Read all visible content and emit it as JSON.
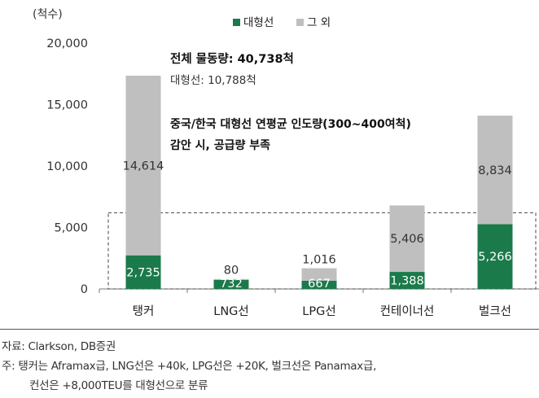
{
  "chart_data": {
    "type": "bar",
    "stacked": true,
    "ylabel": "(척수)",
    "ylim": [
      0,
      20000
    ],
    "yticks": [
      "0",
      "5,000",
      "10,000",
      "15,000",
      "20,000"
    ],
    "ytick_values": [
      0,
      5000,
      10000,
      15000,
      20000
    ],
    "categories": [
      "탱커",
      "LNG선",
      "LPG선",
      "컨테이너선",
      "벌크선"
    ],
    "series": [
      {
        "name": "대형선",
        "color": "#1b7a4a",
        "values": [
          2735,
          732,
          667,
          1388,
          5266
        ],
        "labels": [
          "2,735",
          "732",
          "667",
          "1,388",
          "5,266"
        ]
      },
      {
        "name": "그 외",
        "color": "#bfbfbf",
        "values": [
          14614,
          80,
          1016,
          5406,
          8834
        ],
        "labels": [
          "14,614",
          "80",
          "1,016",
          "5,406",
          "8,834"
        ]
      }
    ],
    "legend_position": "top-center",
    "annotations": [
      "전체 물동량: 40,738척",
      "대형선: 10,788척",
      "중국/한국 대형선 연평균 인도량(300~400여척)",
      "감안 시, 공급량 부족"
    ],
    "threshold_box_value": 6200
  },
  "notes": {
    "source": "자료: Clarkson, DB증권",
    "note1": "주: 탱커는 Aframax급, LNG선은 +40k, LPG선은 +20K, 벌크선은 Panamax급,",
    "note2": "컨선은 +8,000TEU를 대형선으로 분류"
  }
}
